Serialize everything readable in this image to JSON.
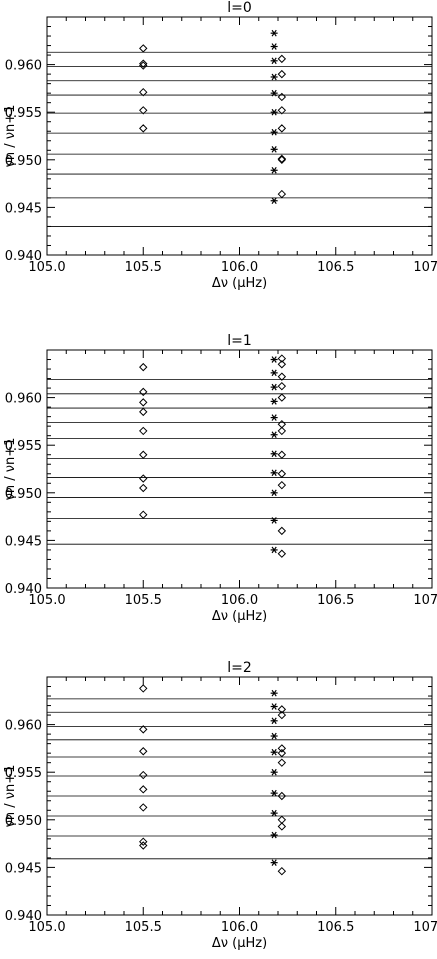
{
  "chart_data": [
    {
      "type": "scatter",
      "title": "l=0",
      "xlabel": "Δν (μHz)",
      "ylabel": "νn / νn+1",
      "xlim": [
        105.0,
        107.0
      ],
      "ylim": [
        0.94,
        0.965
      ],
      "xticks": [
        "105.0",
        "105.5",
        "106.0",
        "106.5",
        "107.0"
      ],
      "yticks": [
        "0.940",
        "0.945",
        "0.950",
        "0.955",
        "0.960"
      ],
      "hlines": [
        0.9613,
        0.9598,
        0.9583,
        0.9568,
        0.9549,
        0.9528,
        0.9506,
        0.9485,
        0.946,
        0.943
      ],
      "series": [
        {
          "marker": "diamond",
          "points": [
            [
              105.5,
              0.9617
            ],
            [
              105.5,
              0.9601
            ],
            [
              105.5,
              0.9599
            ],
            [
              105.5,
              0.9571
            ],
            [
              105.5,
              0.9552
            ],
            [
              105.5,
              0.9533
            ],
            [
              106.22,
              0.9606
            ],
            [
              106.22,
              0.959
            ],
            [
              106.22,
              0.9566
            ],
            [
              106.22,
              0.9552
            ],
            [
              106.22,
              0.9533
            ],
            [
              106.22,
              0.9501
            ],
            [
              106.22,
              0.95
            ],
            [
              106.22,
              0.9464
            ]
          ]
        },
        {
          "marker": "asterisk",
          "points": [
            [
              106.18,
              0.9633
            ],
            [
              106.18,
              0.9619
            ],
            [
              106.18,
              0.9604
            ],
            [
              106.18,
              0.9587
            ],
            [
              106.18,
              0.957
            ],
            [
              106.18,
              0.955
            ],
            [
              106.18,
              0.9529
            ],
            [
              106.18,
              0.9511
            ],
            [
              106.18,
              0.9489
            ],
            [
              106.18,
              0.9457
            ]
          ]
        }
      ]
    },
    {
      "type": "scatter",
      "title": "l=1",
      "xlabel": "Δν (μHz)",
      "ylabel": "νn / νn+1",
      "xlim": [
        105.0,
        107.0
      ],
      "ylim": [
        0.94,
        0.965
      ],
      "xticks": [
        "105.0",
        "105.5",
        "106.0",
        "106.5",
        "107.0"
      ],
      "yticks": [
        "0.940",
        "0.945",
        "0.950",
        "0.955",
        "0.960"
      ],
      "hlines": [
        0.9619,
        0.9604,
        0.9589,
        0.9574,
        0.9557,
        0.9536,
        0.9516,
        0.9495,
        0.9473,
        0.9446
      ],
      "series": [
        {
          "marker": "diamond",
          "points": [
            [
              105.5,
              0.9632
            ],
            [
              105.5,
              0.9606
            ],
            [
              105.5,
              0.9595
            ],
            [
              105.5,
              0.9585
            ],
            [
              105.5,
              0.9565
            ],
            [
              105.5,
              0.954
            ],
            [
              105.5,
              0.9515
            ],
            [
              105.5,
              0.9505
            ],
            [
              105.5,
              0.9477
            ],
            [
              106.22,
              0.9641
            ],
            [
              106.22,
              0.9635
            ],
            [
              106.22,
              0.9622
            ],
            [
              106.22,
              0.9612
            ],
            [
              106.22,
              0.96
            ],
            [
              106.22,
              0.9572
            ],
            [
              106.22,
              0.9565
            ],
            [
              106.22,
              0.954
            ],
            [
              106.22,
              0.952
            ],
            [
              106.22,
              0.9508
            ],
            [
              106.22,
              0.946
            ],
            [
              106.22,
              0.9436
            ]
          ]
        },
        {
          "marker": "asterisk",
          "points": [
            [
              106.18,
              0.964
            ],
            [
              106.18,
              0.9626
            ],
            [
              106.18,
              0.9611
            ],
            [
              106.18,
              0.9596
            ],
            [
              106.18,
              0.9579
            ],
            [
              106.18,
              0.9561
            ],
            [
              106.18,
              0.9541
            ],
            [
              106.18,
              0.9521
            ],
            [
              106.18,
              0.95
            ],
            [
              106.18,
              0.9471
            ],
            [
              106.18,
              0.944
            ]
          ]
        }
      ]
    },
    {
      "type": "scatter",
      "title": "l=2",
      "xlabel": "Δν (μHz)",
      "ylabel": "νn / νn+1",
      "xlim": [
        105.0,
        107.0
      ],
      "ylim": [
        0.94,
        0.965
      ],
      "xticks": [
        "105.0",
        "105.5",
        "106.0",
        "106.5",
        "107.0"
      ],
      "yticks": [
        "0.940",
        "0.945",
        "0.950",
        "0.955",
        "0.960"
      ],
      "hlines": [
        0.9627,
        0.9613,
        0.9598,
        0.9584,
        0.9566,
        0.9546,
        0.9525,
        0.9504,
        0.9483,
        0.9459
      ],
      "series": [
        {
          "marker": "diamond",
          "points": [
            [
              105.5,
              0.9638
            ],
            [
              105.5,
              0.9595
            ],
            [
              105.5,
              0.9572
            ],
            [
              105.5,
              0.9547
            ],
            [
              105.5,
              0.9532
            ],
            [
              105.5,
              0.9513
            ],
            [
              105.5,
              0.9477
            ],
            [
              105.5,
              0.9473
            ],
            [
              106.22,
              0.9616
            ],
            [
              106.22,
              0.961
            ],
            [
              106.22,
              0.9575
            ],
            [
              106.22,
              0.957
            ],
            [
              106.22,
              0.956
            ],
            [
              106.22,
              0.9525
            ],
            [
              106.22,
              0.95
            ],
            [
              106.22,
              0.9493
            ],
            [
              106.22,
              0.9446
            ]
          ]
        },
        {
          "marker": "asterisk",
          "points": [
            [
              106.18,
              0.9633
            ],
            [
              106.18,
              0.9619
            ],
            [
              106.18,
              0.9604
            ],
            [
              106.18,
              0.9588
            ],
            [
              106.18,
              0.9571
            ],
            [
              106.18,
              0.955
            ],
            [
              106.18,
              0.9528
            ],
            [
              106.18,
              0.9507
            ],
            [
              106.18,
              0.9484
            ],
            [
              106.18,
              0.9455
            ]
          ]
        }
      ]
    }
  ]
}
